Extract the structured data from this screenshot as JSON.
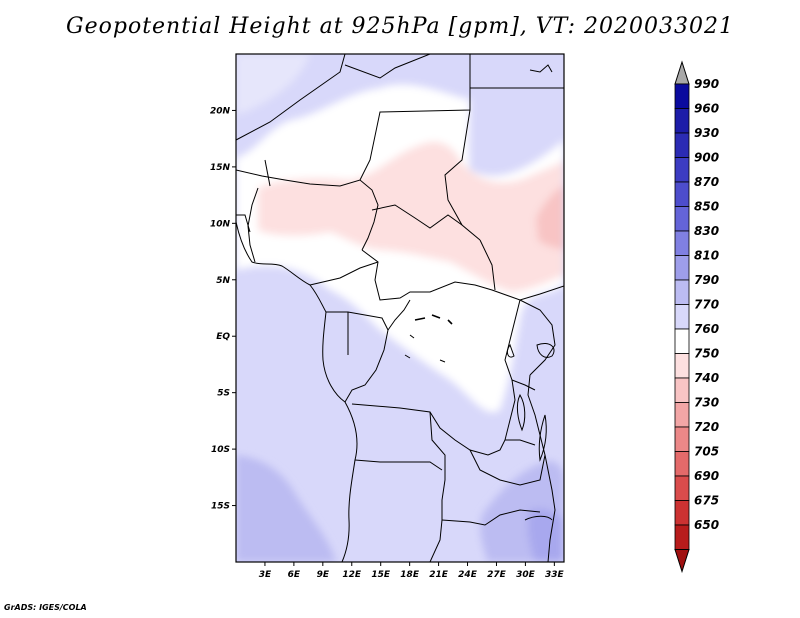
{
  "title": "Geopotential Height at 925hPa [gpm], VT: 2020033021",
  "credit": "GrADS: IGES/COLA",
  "map": {
    "lon_range": [
      0,
      34
    ],
    "lat_range": [
      -20,
      25
    ],
    "lat_ticks": [
      {
        "lat": 20,
        "label": "20N"
      },
      {
        "lat": 15,
        "label": "15N"
      },
      {
        "lat": 10,
        "label": "10N"
      },
      {
        "lat": 5,
        "label": "5N"
      },
      {
        "lat": 0,
        "label": "EQ"
      },
      {
        "lat": -5,
        "label": "5S"
      },
      {
        "lat": -10,
        "label": "10S"
      },
      {
        "lat": -15,
        "label": "15S"
      }
    ],
    "lon_ticks": [
      {
        "lon": 3,
        "label": "3E"
      },
      {
        "lon": 6,
        "label": "6E"
      },
      {
        "lon": 9,
        "label": "9E"
      },
      {
        "lon": 12,
        "label": "12E"
      },
      {
        "lon": 15,
        "label": "15E"
      },
      {
        "lon": 18,
        "label": "18E"
      },
      {
        "lon": 21,
        "label": "21E"
      },
      {
        "lon": 24,
        "label": "24E"
      },
      {
        "lon": 27,
        "label": "27E"
      },
      {
        "lon": 30,
        "label": "30E"
      },
      {
        "lon": 33,
        "label": "33E"
      }
    ]
  },
  "colorbar": {
    "levels": [
      {
        "label": "990",
        "color": "#0a0a9e"
      },
      {
        "label": "960",
        "color": "#1c1ca8"
      },
      {
        "label": "930",
        "color": "#2b2bb4"
      },
      {
        "label": "900",
        "color": "#3c3cc2"
      },
      {
        "label": "870",
        "color": "#4d4dcc"
      },
      {
        "label": "850",
        "color": "#6464d8"
      },
      {
        "label": "830",
        "color": "#8080e2"
      },
      {
        "label": "810",
        "color": "#9e9eea"
      },
      {
        "label": "790",
        "color": "#bcbcf2"
      },
      {
        "label": "770",
        "color": "#d8d8fa"
      },
      {
        "label": "760",
        "color": "#ffffff"
      },
      {
        "label": "750",
        "color": "#fde0e0"
      },
      {
        "label": "740",
        "color": "#f8c4c4"
      },
      {
        "label": "730",
        "color": "#f2a6a6"
      },
      {
        "label": "720",
        "color": "#ec8888"
      },
      {
        "label": "705",
        "color": "#e46a6a"
      },
      {
        "label": "690",
        "color": "#da4c4c"
      },
      {
        "label": "675",
        "color": "#cc3232"
      },
      {
        "label": "650",
        "color": "#b81c1c"
      }
    ],
    "top_color": "#a8a8a8",
    "bottom_color": "#a01010"
  }
}
